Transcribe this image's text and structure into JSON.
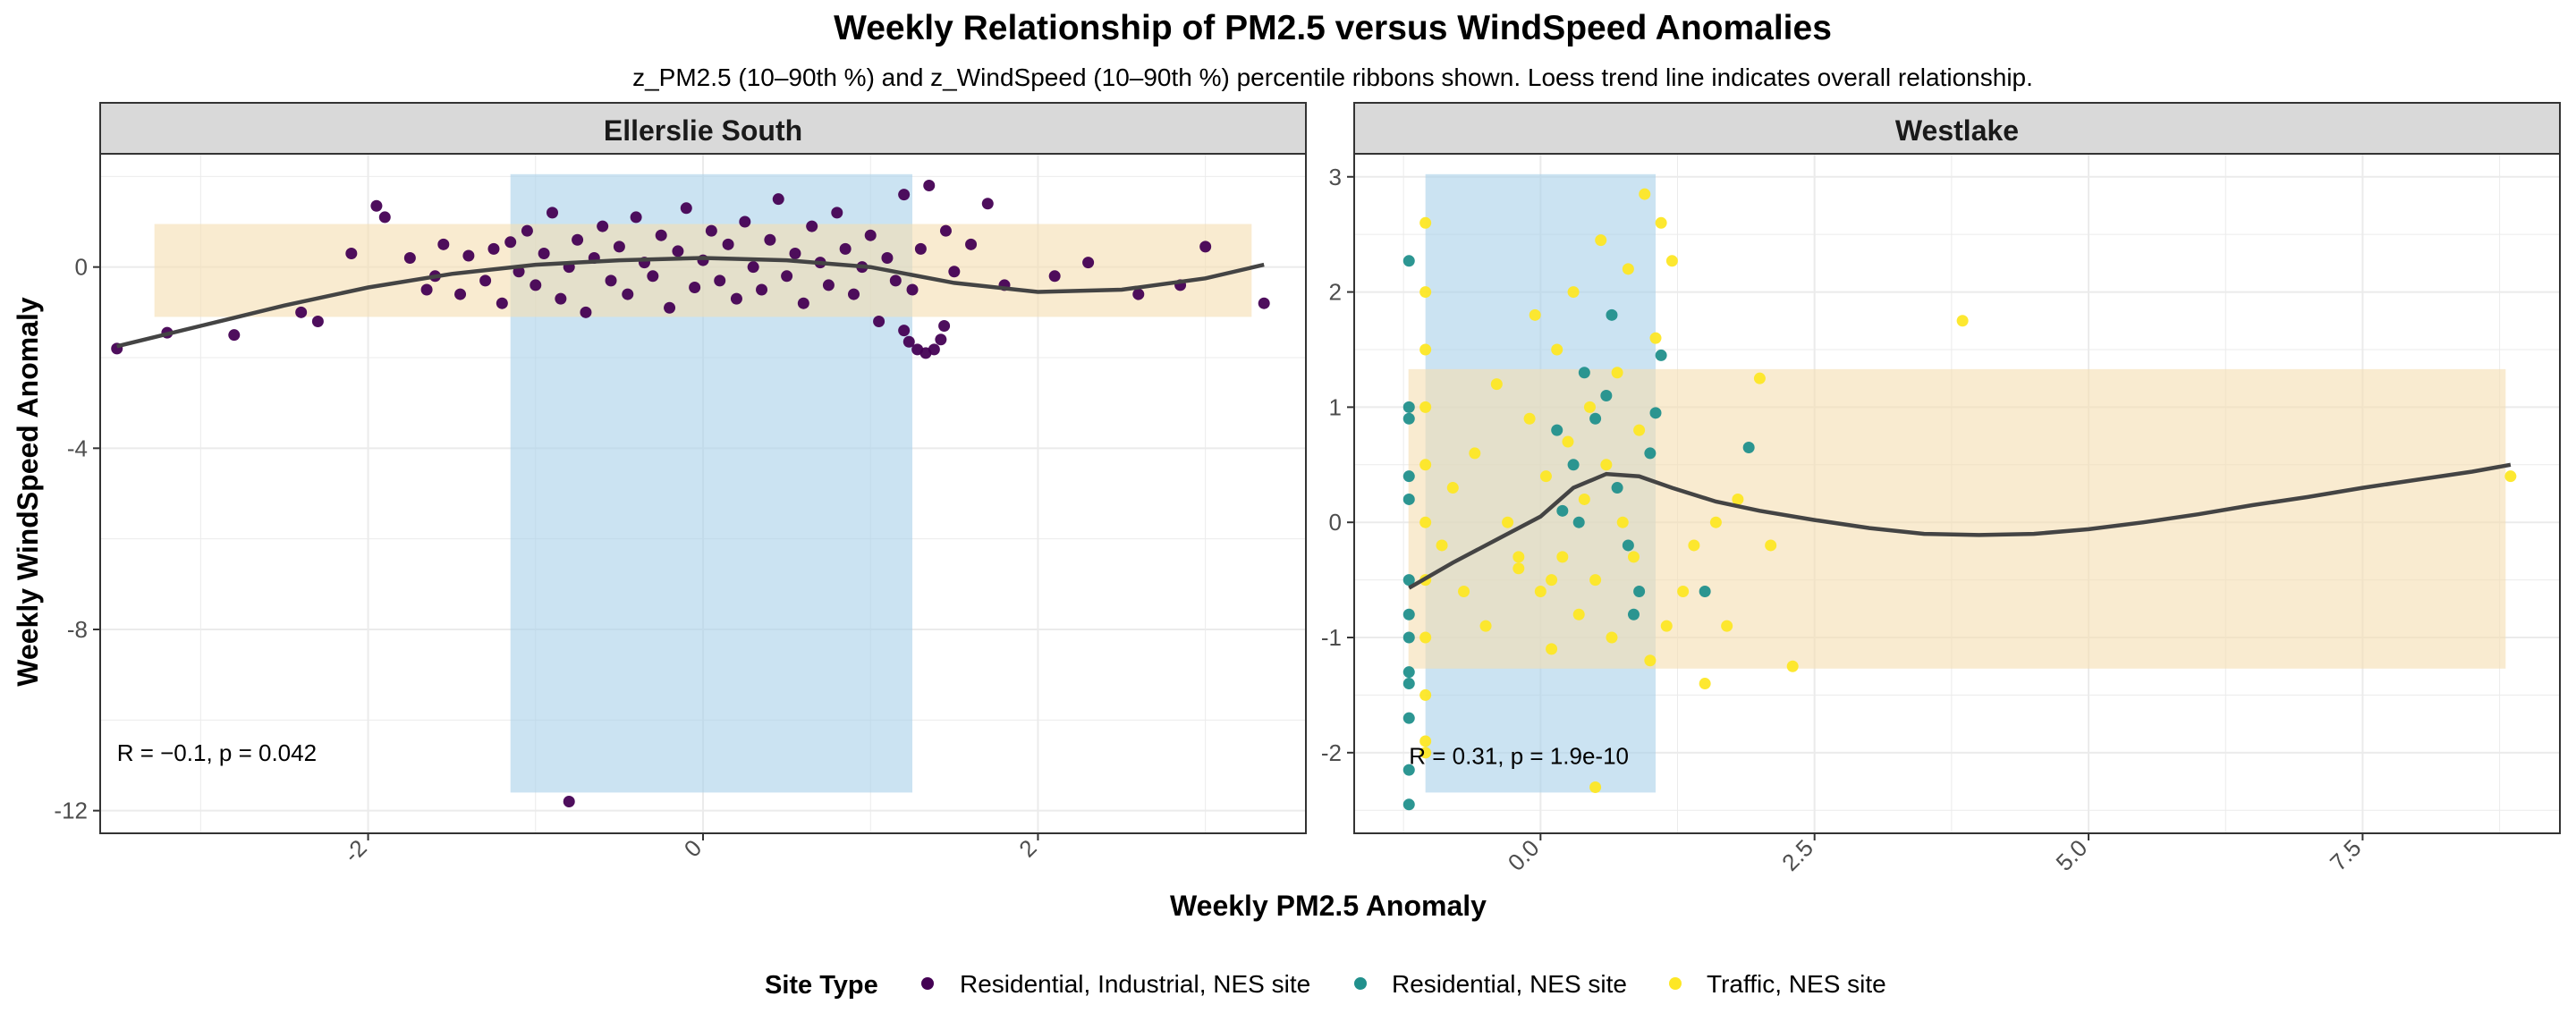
{
  "chart_data": {
    "type": "scatter",
    "title": "Weekly Relationship of PM2.5 versus WindSpeed Anomalies",
    "subtitle": "z_PM2.5 (10–90th %) and z_WindSpeed (10–90th %) percentile ribbons shown. Loess trend line indicates overall relationship.",
    "xlabel": "Weekly PM2.5 Anomaly",
    "ylabel": "Weekly WindSpeed Anomaly",
    "grid": true,
    "legend": {
      "title": "Site Type",
      "position": "bottom",
      "entries": [
        {
          "label": "Residential, Industrial, NES site",
          "color": "#440154"
        },
        {
          "label": "Residential, NES site",
          "color": "#21908C"
        },
        {
          "label": "Traffic, NES site",
          "color": "#FDE725"
        }
      ]
    },
    "colors": {
      "x_ribbon": "#a8d1ea",
      "y_ribbon": "#f5deb0",
      "trend": "#444444",
      "strip": "#d9d9d9"
    },
    "panels": [
      {
        "strip": "Ellerslie South",
        "xlim": [
          -3.6,
          3.6
        ],
        "ylim": [
          -12.5,
          2.5
        ],
        "xticks": [
          -2,
          0,
          2
        ],
        "xticklabels": [
          "-2",
          "0",
          "2"
        ],
        "yticks": [
          -12,
          -8,
          -4,
          0
        ],
        "yticklabels": [
          "-12",
          "-8",
          "-4",
          "0"
        ],
        "x_ribbon": [
          -1.15,
          1.25
        ],
        "y_ribbon": [
          -1.1,
          0.95
        ],
        "stat_label": "R = −0.1, p = 0.042",
        "stat_pos": [
          -3.5,
          -10.9
        ],
        "trend": [
          [
            -3.5,
            -1.75
          ],
          [
            -3.0,
            -1.3
          ],
          [
            -2.5,
            -0.85
          ],
          [
            -2.0,
            -0.45
          ],
          [
            -1.5,
            -0.15
          ],
          [
            -1.0,
            0.05
          ],
          [
            -0.5,
            0.15
          ],
          [
            0.0,
            0.2
          ],
          [
            0.5,
            0.15
          ],
          [
            1.0,
            0.0
          ],
          [
            1.5,
            -0.35
          ],
          [
            2.0,
            -0.55
          ],
          [
            2.5,
            -0.5
          ],
          [
            3.0,
            -0.25
          ],
          [
            3.35,
            0.05
          ]
        ],
        "points": [
          [
            -3.5,
            -1.8,
            0
          ],
          [
            -3.2,
            -1.45,
            0
          ],
          [
            -2.8,
            -1.5,
            0
          ],
          [
            -2.4,
            -1.0,
            0
          ],
          [
            -2.3,
            -1.2,
            0
          ],
          [
            -2.1,
            0.3,
            0
          ],
          [
            -1.95,
            1.35,
            0
          ],
          [
            -1.9,
            1.1,
            0
          ],
          [
            -1.75,
            0.2,
            0
          ],
          [
            -1.65,
            -0.5,
            0
          ],
          [
            -1.6,
            -0.2,
            0
          ],
          [
            -1.55,
            0.5,
            0
          ],
          [
            -1.45,
            -0.6,
            0
          ],
          [
            -1.4,
            0.25,
            0
          ],
          [
            -1.3,
            -0.3,
            0
          ],
          [
            -1.25,
            0.4,
            0
          ],
          [
            -1.2,
            -0.8,
            0
          ],
          [
            -1.15,
            0.55,
            0
          ],
          [
            -1.1,
            -0.1,
            0
          ],
          [
            -1.05,
            0.8,
            0
          ],
          [
            -1.0,
            -0.4,
            0
          ],
          [
            -0.95,
            0.3,
            0
          ],
          [
            -0.9,
            1.2,
            0
          ],
          [
            -0.85,
            -0.7,
            0
          ],
          [
            -0.8,
            0.0,
            0
          ],
          [
            -0.75,
            0.6,
            0
          ],
          [
            -0.7,
            -1.0,
            0
          ],
          [
            -0.65,
            0.2,
            0
          ],
          [
            -0.6,
            0.9,
            0
          ],
          [
            -0.55,
            -0.3,
            0
          ],
          [
            -0.5,
            0.45,
            0
          ],
          [
            -0.45,
            -0.6,
            0
          ],
          [
            -0.4,
            1.1,
            0
          ],
          [
            -0.35,
            0.1,
            0
          ],
          [
            -0.3,
            -0.2,
            0
          ],
          [
            -0.25,
            0.7,
            0
          ],
          [
            -0.2,
            -0.9,
            0
          ],
          [
            -0.15,
            0.35,
            0
          ],
          [
            -0.1,
            1.3,
            0
          ],
          [
            -0.05,
            -0.45,
            0
          ],
          [
            0.0,
            0.15,
            0
          ],
          [
            0.05,
            0.8,
            0
          ],
          [
            0.1,
            -0.3,
            0
          ],
          [
            0.15,
            0.5,
            0
          ],
          [
            0.2,
            -0.7,
            0
          ],
          [
            0.25,
            1.0,
            0
          ],
          [
            0.3,
            0.0,
            0
          ],
          [
            0.35,
            -0.5,
            0
          ],
          [
            0.4,
            0.6,
            0
          ],
          [
            0.45,
            1.5,
            0
          ],
          [
            0.5,
            -0.2,
            0
          ],
          [
            0.55,
            0.3,
            0
          ],
          [
            0.6,
            -0.8,
            0
          ],
          [
            0.65,
            0.9,
            0
          ],
          [
            0.7,
            0.1,
            0
          ],
          [
            0.75,
            -0.4,
            0
          ],
          [
            0.8,
            1.2,
            0
          ],
          [
            0.85,
            0.4,
            0
          ],
          [
            0.9,
            -0.6,
            0
          ],
          [
            0.95,
            0.0,
            0
          ],
          [
            1.0,
            0.7,
            0
          ],
          [
            1.05,
            -1.2,
            0
          ],
          [
            1.1,
            0.2,
            0
          ],
          [
            1.15,
            -0.3,
            0
          ],
          [
            1.2,
            1.6,
            0
          ],
          [
            1.25,
            -0.5,
            0
          ],
          [
            1.3,
            0.4,
            0
          ],
          [
            1.35,
            1.8,
            0
          ],
          [
            1.45,
            0.8,
            0
          ],
          [
            1.5,
            -0.1,
            0
          ],
          [
            1.6,
            0.5,
            0
          ],
          [
            1.7,
            1.4,
            0
          ],
          [
            1.8,
            -0.4,
            0
          ],
          [
            2.1,
            -0.2,
            0
          ],
          [
            2.3,
            0.1,
            0
          ],
          [
            2.6,
            -0.6,
            0
          ],
          [
            2.85,
            -0.4,
            0
          ],
          [
            3.0,
            0.45,
            0
          ],
          [
            3.35,
            -0.8,
            0
          ],
          [
            -0.8,
            -11.8,
            0
          ],
          [
            1.2,
            -1.4,
            0
          ],
          [
            1.23,
            -1.65,
            0
          ],
          [
            1.28,
            -1.82,
            0
          ],
          [
            1.33,
            -1.9,
            0
          ],
          [
            1.38,
            -1.82,
            0
          ],
          [
            1.42,
            -1.6,
            0
          ],
          [
            1.44,
            -1.3,
            0
          ]
        ]
      },
      {
        "strip": "Westlake",
        "xlim": [
          -1.7,
          9.3
        ],
        "ylim": [
          -2.7,
          3.2
        ],
        "xticks": [
          0,
          2.5,
          5,
          7.5
        ],
        "xticklabels": [
          "0.0",
          "2.5",
          "5.0",
          "7.5"
        ],
        "yticks": [
          -2,
          -1,
          0,
          1,
          2,
          3
        ],
        "yticklabels": [
          "-2",
          "-1",
          "0",
          "1",
          "2",
          "3"
        ],
        "x_ribbon": [
          -1.05,
          1.05
        ],
        "y_ribbon": [
          -1.27,
          1.33
        ],
        "stat_label": "R = 0.31, p = 1.9e-10",
        "stat_pos": [
          -1.2,
          -2.1
        ],
        "trend": [
          [
            -1.2,
            -0.57
          ],
          [
            -0.8,
            -0.35
          ],
          [
            -0.4,
            -0.15
          ],
          [
            0.0,
            0.05
          ],
          [
            0.3,
            0.3
          ],
          [
            0.6,
            0.42
          ],
          [
            0.9,
            0.4
          ],
          [
            1.2,
            0.3
          ],
          [
            1.6,
            0.18
          ],
          [
            2.0,
            0.1
          ],
          [
            2.5,
            0.02
          ],
          [
            3.0,
            -0.05
          ],
          [
            3.5,
            -0.1
          ],
          [
            4.0,
            -0.11
          ],
          [
            4.5,
            -0.1
          ],
          [
            5.0,
            -0.06
          ],
          [
            5.5,
            0.0
          ],
          [
            6.0,
            0.07
          ],
          [
            6.5,
            0.15
          ],
          [
            7.0,
            0.22
          ],
          [
            7.5,
            0.3
          ],
          [
            8.0,
            0.37
          ],
          [
            8.5,
            0.44
          ],
          [
            8.85,
            0.5
          ]
        ],
        "points": [
          [
            -1.2,
            2.27,
            1
          ],
          [
            -1.2,
            1.0,
            1
          ],
          [
            -1.2,
            0.9,
            1
          ],
          [
            -1.2,
            0.4,
            1
          ],
          [
            -1.2,
            0.2,
            1
          ],
          [
            -1.2,
            -0.5,
            1
          ],
          [
            -1.2,
            -0.8,
            1
          ],
          [
            -1.2,
            -1.0,
            1
          ],
          [
            -1.2,
            -1.3,
            1
          ],
          [
            -1.2,
            -1.4,
            1
          ],
          [
            -1.2,
            -1.7,
            1
          ],
          [
            -1.2,
            -2.15,
            1
          ],
          [
            -1.2,
            -2.45,
            1
          ],
          [
            0.4,
            1.3,
            1
          ],
          [
            0.5,
            0.9,
            1
          ],
          [
            0.6,
            1.1,
            1
          ],
          [
            0.3,
            0.5,
            1
          ],
          [
            0.7,
            0.3,
            1
          ],
          [
            0.2,
            0.1,
            1
          ],
          [
            0.8,
            -0.2,
            1
          ],
          [
            0.9,
            -0.6,
            1
          ],
          [
            1.0,
            0.6,
            1
          ],
          [
            1.05,
            0.95,
            1
          ],
          [
            1.1,
            1.45,
            1
          ],
          [
            0.35,
            0.0,
            1
          ],
          [
            0.65,
            1.8,
            1
          ],
          [
            0.15,
            0.8,
            1
          ],
          [
            0.85,
            -0.8,
            1
          ],
          [
            1.5,
            -0.6,
            1
          ],
          [
            1.9,
            0.65,
            1
          ],
          [
            -1.05,
            2.6,
            2
          ],
          [
            -1.05,
            2.0,
            2
          ],
          [
            -1.05,
            1.5,
            2
          ],
          [
            -1.05,
            1.0,
            2
          ],
          [
            -1.05,
            0.5,
            2
          ],
          [
            -1.05,
            0.0,
            2
          ],
          [
            -1.05,
            -0.5,
            2
          ],
          [
            -1.05,
            -1.0,
            2
          ],
          [
            -1.05,
            -1.5,
            2
          ],
          [
            -1.05,
            -1.9,
            2
          ],
          [
            -1.05,
            -2.0,
            2
          ],
          [
            -0.9,
            -0.2,
            2
          ],
          [
            -0.8,
            0.3,
            2
          ],
          [
            -0.7,
            -0.6,
            2
          ],
          [
            -0.6,
            0.6,
            2
          ],
          [
            -0.5,
            -0.9,
            2
          ],
          [
            -0.4,
            1.2,
            2
          ],
          [
            -0.3,
            0.0,
            2
          ],
          [
            -0.2,
            -0.4,
            2
          ],
          [
            -0.1,
            0.9,
            2
          ],
          [
            -0.05,
            1.8,
            2
          ],
          [
            0.0,
            -0.6,
            2
          ],
          [
            0.05,
            0.4,
            2
          ],
          [
            0.1,
            -1.1,
            2
          ],
          [
            0.15,
            1.5,
            2
          ],
          [
            0.2,
            -0.3,
            2
          ],
          [
            0.25,
            0.7,
            2
          ],
          [
            0.3,
            2.0,
            2
          ],
          [
            0.35,
            -0.8,
            2
          ],
          [
            0.4,
            0.2,
            2
          ],
          [
            0.45,
            1.0,
            2
          ],
          [
            0.5,
            -0.5,
            2
          ],
          [
            0.55,
            2.45,
            2
          ],
          [
            0.6,
            0.5,
            2
          ],
          [
            0.65,
            -1.0,
            2
          ],
          [
            0.7,
            1.3,
            2
          ],
          [
            0.75,
            0.0,
            2
          ],
          [
            0.8,
            2.2,
            2
          ],
          [
            0.85,
            -0.3,
            2
          ],
          [
            0.9,
            0.8,
            2
          ],
          [
            0.95,
            2.85,
            2
          ],
          [
            1.0,
            -1.2,
            2
          ],
          [
            1.05,
            1.6,
            2
          ],
          [
            1.1,
            2.6,
            2
          ],
          [
            1.15,
            -0.9,
            2
          ],
          [
            1.2,
            2.27,
            2
          ],
          [
            1.3,
            -0.6,
            2
          ],
          [
            1.4,
            -0.2,
            2
          ],
          [
            1.5,
            -1.4,
            2
          ],
          [
            1.6,
            0.0,
            2
          ],
          [
            1.7,
            -0.9,
            2
          ],
          [
            1.8,
            0.2,
            2
          ],
          [
            2.0,
            1.25,
            2
          ],
          [
            2.1,
            -0.2,
            2
          ],
          [
            2.3,
            -1.25,
            2
          ],
          [
            3.85,
            1.75,
            2
          ],
          [
            8.85,
            0.4,
            2
          ],
          [
            0.5,
            -2.3,
            2
          ],
          [
            -0.2,
            -0.3,
            2
          ],
          [
            0.1,
            -0.5,
            2
          ]
        ]
      }
    ]
  }
}
